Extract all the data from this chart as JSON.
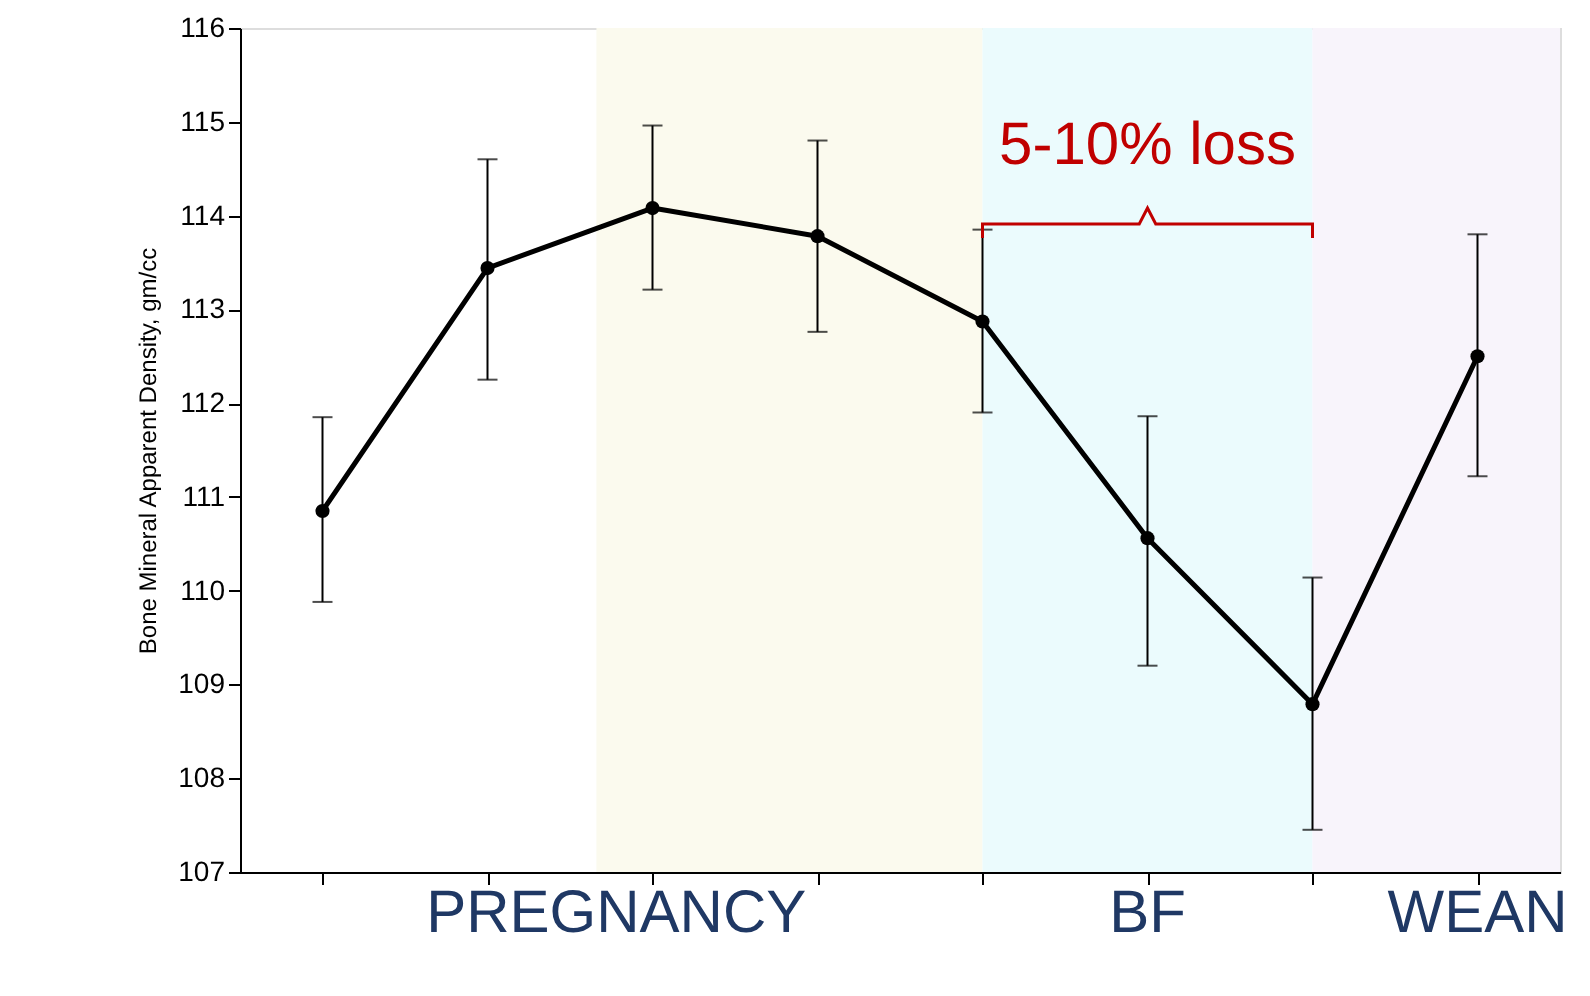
{
  "chart_data": {
    "type": "line",
    "ylabel": "Bone Mineral Apparent Density, gm/cc",
    "categories": [
      null,
      null,
      null,
      null,
      null,
      null,
      null,
      null
    ],
    "series": [
      {
        "color": "#000000",
        "values": [
          110.85,
          113.44,
          114.08,
          113.78,
          112.87,
          110.56,
          108.79,
          112.5
        ],
        "errors": [
          [
            109.88,
            111.85
          ],
          [
            112.25,
            114.6
          ],
          [
            113.21,
            114.96
          ],
          [
            112.76,
            114.8
          ],
          [
            111.9,
            113.85
          ],
          [
            109.2,
            111.86
          ],
          [
            107.45,
            110.14
          ],
          [
            111.22,
            113.8
          ]
        ]
      }
    ],
    "ylim": [
      107,
      116
    ],
    "yticks": [
      107,
      108,
      109,
      110,
      111,
      112,
      113,
      114,
      115,
      116
    ],
    "tick_labels": "y",
    "marker": "circle",
    "line_style": "solid",
    "annotations": [
      "5-10% loss",
      "PREGNANCY",
      "BF",
      "WEAN"
    ]
  }
}
